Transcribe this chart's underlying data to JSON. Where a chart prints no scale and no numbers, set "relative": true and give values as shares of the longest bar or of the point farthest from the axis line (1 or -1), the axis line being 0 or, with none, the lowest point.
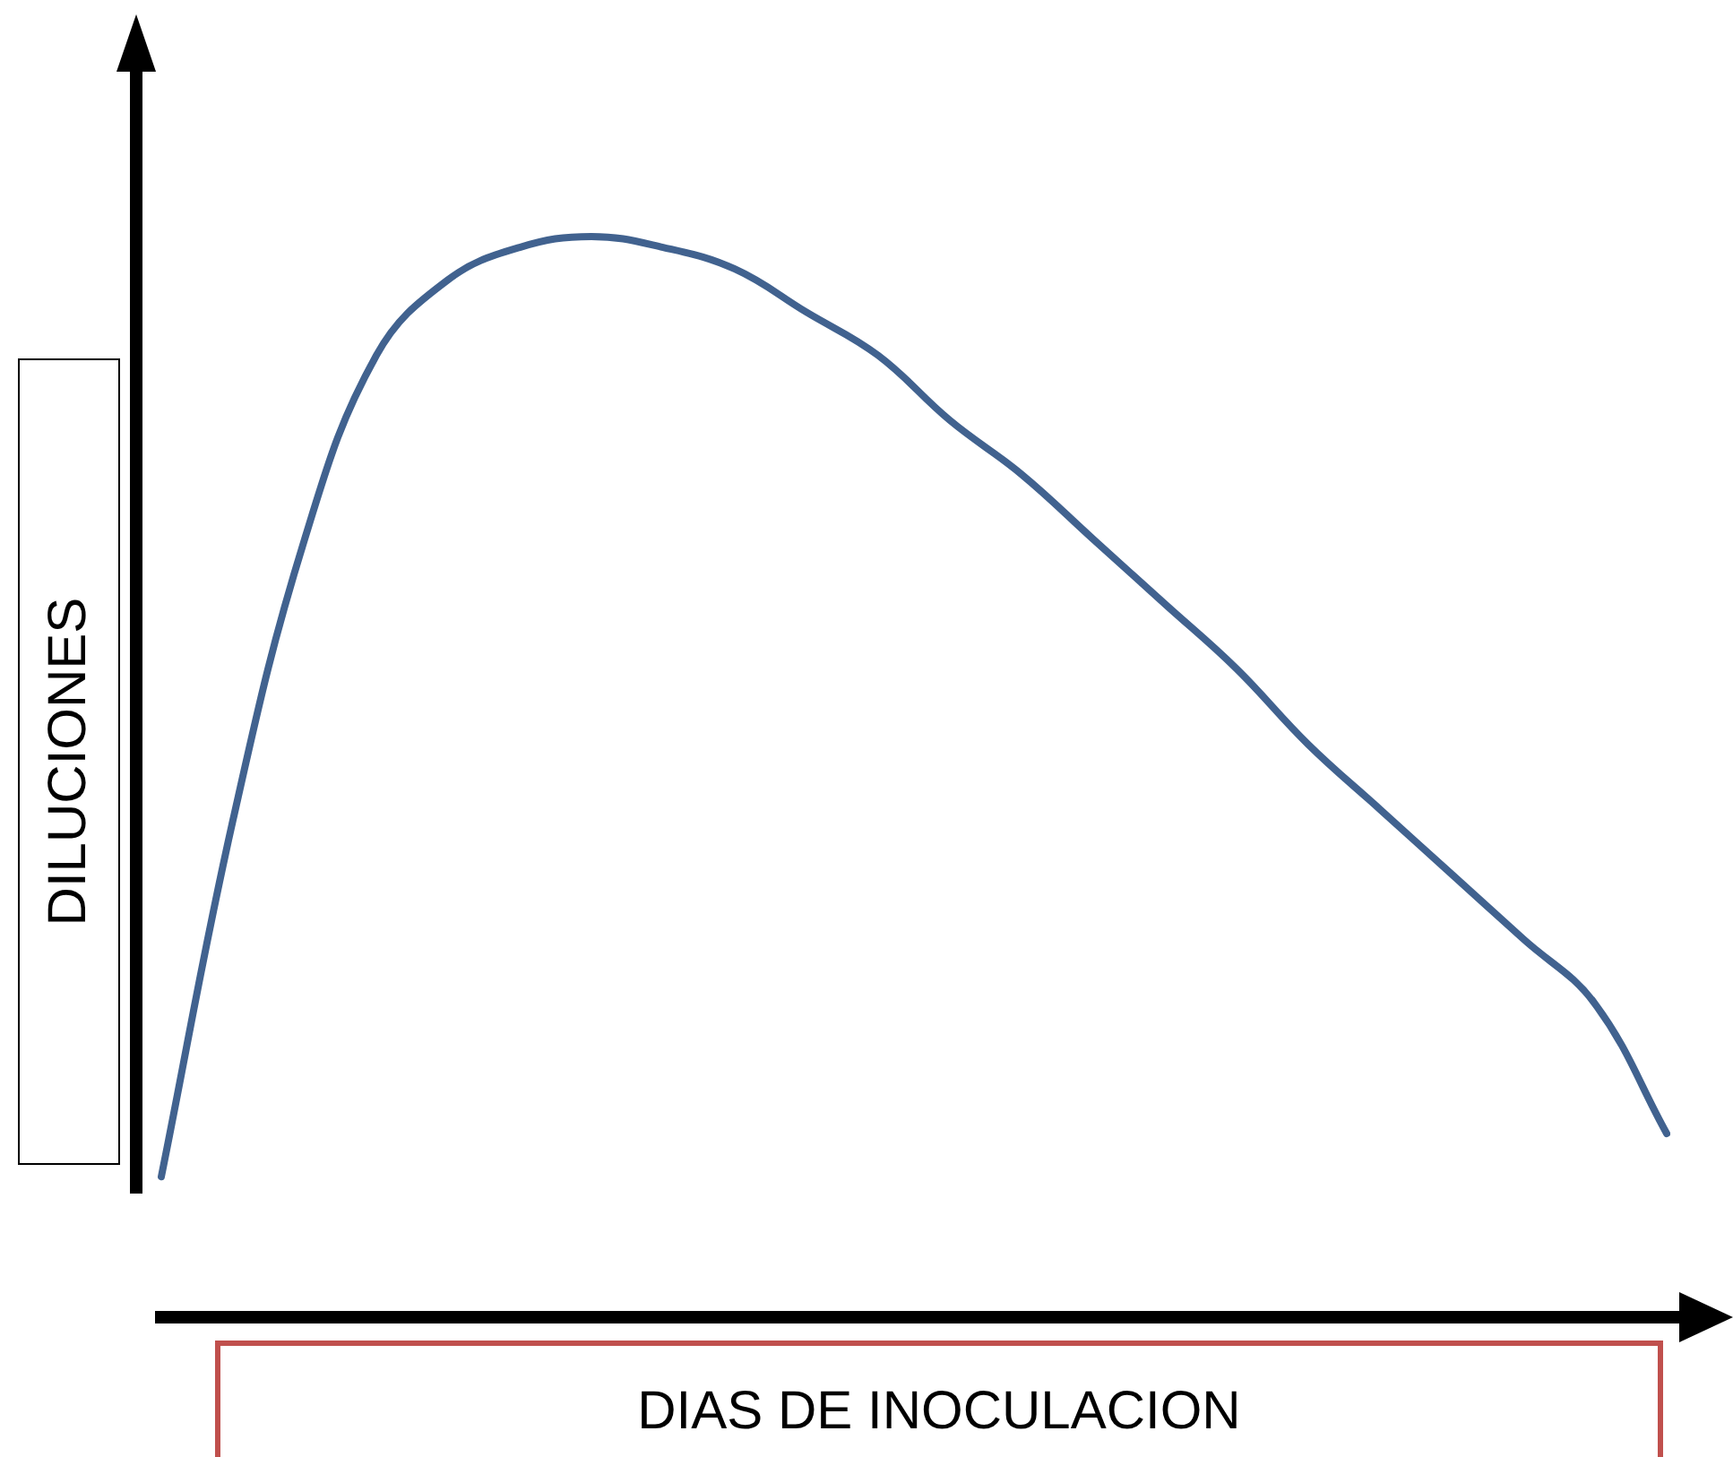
{
  "chart_data": {
    "type": "line",
    "relative": true,
    "xlabel": "DIAS DE INOCULACION",
    "ylabel": "DILUCIONES",
    "marker": "none",
    "categories": [
      null,
      null,
      null,
      null,
      null,
      null,
      null,
      null,
      null,
      null,
      null,
      null,
      null,
      null,
      null,
      null,
      null,
      null,
      null,
      null,
      null,
      null
    ],
    "series": [
      {
        "color": "#41628f",
        "values": [
          0.13,
          0.46,
          0.72,
          0.89,
          0.96,
          0.99,
          1,
          0.99,
          0.97,
          0.93,
          0.89,
          0.83,
          0.78,
          0.72,
          0.66,
          0.6,
          0.53,
          0.47,
          0.41,
          0.35,
          0.29,
          0.17
        ]
      }
    ]
  }
}
